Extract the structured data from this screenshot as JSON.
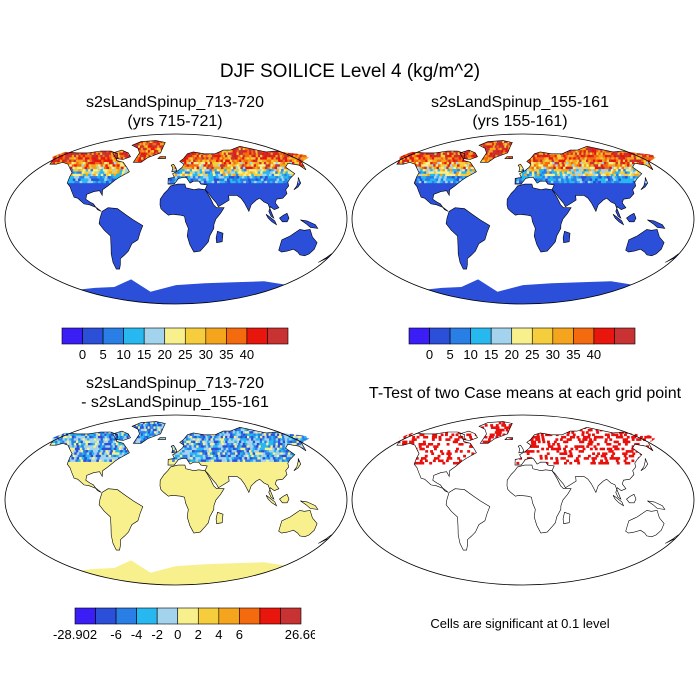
{
  "figure": {
    "title": "DJF SOILICE Level 4 (kg/m^2)",
    "footnote": "Cells are significant at 0.1 level"
  },
  "panels": [
    {
      "id": "case",
      "title_line1": "s2sLandSpinup_713-720",
      "title_line2": "(yrs 715-721)"
    },
    {
      "id": "control",
      "title_line1": "s2sLandSpinup_155-161",
      "title_line2": "(yrs 155-161)"
    },
    {
      "id": "difference",
      "title_line1": "s2sLandSpinup_713-720",
      "title_line2": "- s2sLandSpinup_155-161"
    },
    {
      "id": "ttest",
      "title_line1": "T-Test of two Case means at each grid point"
    }
  ],
  "colorbars": {
    "absolute": {
      "colors": [
        "#3b1ef5",
        "#2b4fd9",
        "#2a7fe6",
        "#27b8f0",
        "#a4d3ee",
        "#f7f08c",
        "#f5cd3d",
        "#f5a51d",
        "#f46a0e",
        "#e8160c",
        "#c83232"
      ],
      "labels": [
        "0",
        "5",
        "10",
        "15",
        "20",
        "25",
        "30",
        "35",
        "40"
      ]
    },
    "difference": {
      "colors": [
        "#3b1ef5",
        "#2b4fd9",
        "#2a7fe6",
        "#27b8f0",
        "#a4d3ee",
        "#f7f08c",
        "#f5cd3d",
        "#f5a51d",
        "#f46a0e",
        "#e8160c",
        "#c83232"
      ],
      "labels": [
        "-28.902",
        "-6",
        "-4",
        "-2",
        "0",
        "2",
        "4",
        "6",
        "26.66"
      ]
    }
  }
}
